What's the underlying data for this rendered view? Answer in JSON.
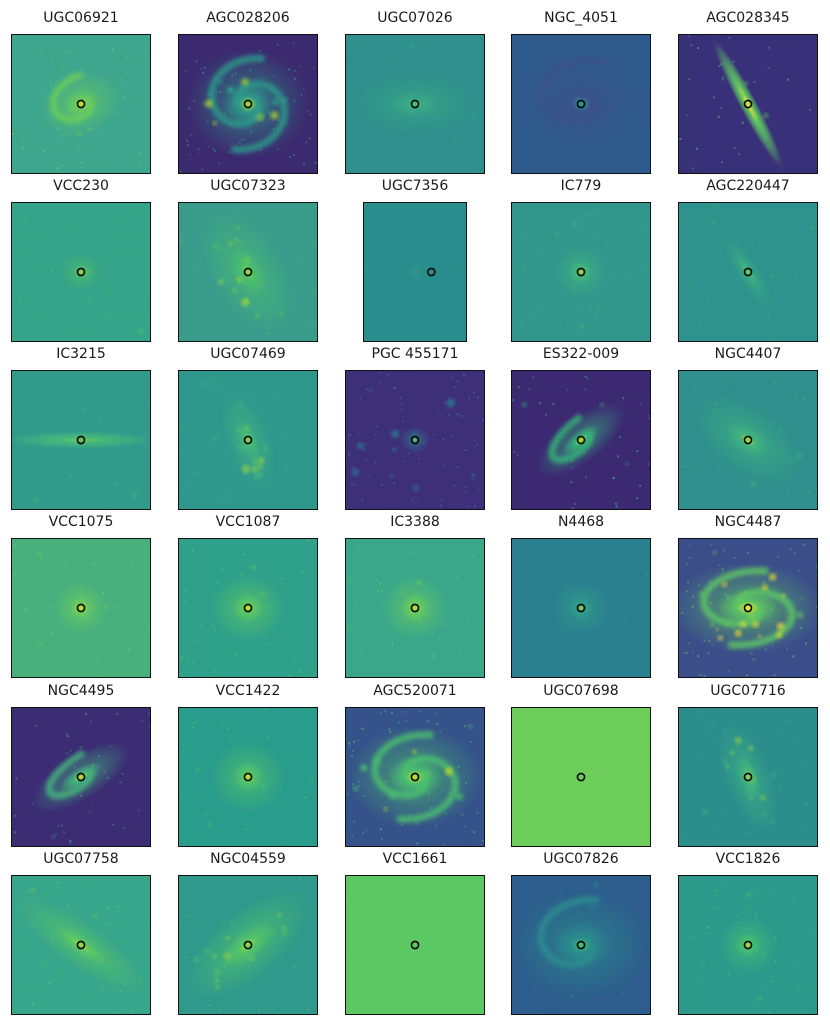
{
  "figure": {
    "colormap": "viridis",
    "marker": {
      "shape": "circle",
      "fill": "none",
      "stroke": "#000000"
    },
    "panels": [
      {
        "title": "UGC06921",
        "morph": "spiral",
        "bg": "#3ea68d",
        "core": "#d2e21b",
        "glow": "#6ccd5a",
        "angle": -20,
        "elong": 0.75,
        "spread": 0.55
      },
      {
        "title": "AGC028206",
        "morph": "grand_spiral",
        "bg": "#3b2a6f",
        "core": "#b5de2b",
        "glow": "#2d9c8a",
        "angle": 0,
        "elong": 0.9,
        "spread": 0.8
      },
      {
        "title": "UGC07026",
        "morph": "disk",
        "bg": "#2f8f8c",
        "core": "#50c46a",
        "glow": "#38aa85",
        "angle": 0,
        "elong": 0.5,
        "spread": 0.8
      },
      {
        "title": "NGC_4051",
        "morph": "spiral_dark",
        "bg": "#2f5b8c",
        "core": "#2aa08a",
        "glow": "#3b528b",
        "angle": 10,
        "elong": 0.8,
        "spread": 0.9
      },
      {
        "title": "AGC028345",
        "morph": "edge_on",
        "bg": "#39307a",
        "core": "#fde725",
        "glow": "#5ec962",
        "angle": 62,
        "elong": 0.12,
        "spread": 1.0
      },
      {
        "title": "VCC230",
        "morph": "smooth",
        "bg": "#35a488",
        "core": "#c8e020",
        "glow": "#4fc26a",
        "angle": 0,
        "elong": 1.0,
        "spread": 0.25
      },
      {
        "title": "UGC07323",
        "morph": "diffuse",
        "bg": "#3a9d8b",
        "core": "#9ad83d",
        "glow": "#4cbf6c",
        "angle": 60,
        "elong": 0.55,
        "spread": 0.85
      },
      {
        "title": "UGC7356",
        "morph": "faint",
        "bg": "#2a8d8d",
        "core": "#6ccd5a",
        "glow": "#2f9a8a",
        "angle": 0,
        "elong": 1.0,
        "spread": 0.1
      },
      {
        "title": "IC779",
        "morph": "smooth",
        "bg": "#31968b",
        "core": "#bfdf25",
        "glow": "#45b97a",
        "angle": 0,
        "elong": 1.0,
        "spread": 0.35
      },
      {
        "title": "AGC220447",
        "morph": "disk",
        "bg": "#2e938c",
        "core": "#8fd744",
        "glow": "#3fb47f",
        "angle": 58,
        "elong": 0.28,
        "spread": 0.55
      },
      {
        "title": "IC3215",
        "morph": "edge_on",
        "bg": "#329a8b",
        "core": "#6ccd5a",
        "glow": "#44b87b",
        "angle": 0,
        "elong": 0.12,
        "spread": 1.0
      },
      {
        "title": "UGC07469",
        "morph": "diffuse",
        "bg": "#2f988c",
        "core": "#9ad83d",
        "glow": "#45b97a",
        "angle": 70,
        "elong": 0.45,
        "spread": 0.65
      },
      {
        "title": "PGC 455171",
        "morph": "field",
        "bg": "#3e2f79",
        "core": "#d2e21b",
        "glow": "#2c838e",
        "angle": 0,
        "elong": 0.9,
        "spread": 0.2
      },
      {
        "title": "ES322-009",
        "morph": "spiral_tilt",
        "bg": "#3b2a72",
        "core": "#dde318",
        "glow": "#35b779",
        "angle": -38,
        "elong": 0.42,
        "spread": 0.7
      },
      {
        "title": "NGC4407",
        "morph": "disk",
        "bg": "#2f8f8c",
        "core": "#b8de29",
        "glow": "#41b57d",
        "angle": 35,
        "elong": 0.55,
        "spread": 0.8
      },
      {
        "title": "VCC1075",
        "morph": "smooth",
        "bg": "#47b07d",
        "core": "#d8e219",
        "glow": "#73d056",
        "angle": 0,
        "elong": 1.0,
        "spread": 0.35
      },
      {
        "title": "VCC1087",
        "morph": "smooth",
        "bg": "#2fa08a",
        "core": "#dde318",
        "glow": "#5ec962",
        "angle": 0,
        "elong": 0.9,
        "spread": 0.5
      },
      {
        "title": "IC3388",
        "morph": "smooth",
        "bg": "#3aa78a",
        "core": "#d8e219",
        "glow": "#6ccd5a",
        "angle": 0,
        "elong": 0.95,
        "spread": 0.45
      },
      {
        "title": "N4468",
        "morph": "smooth",
        "bg": "#2a7f8e",
        "core": "#9fda3a",
        "glow": "#2fa08a",
        "angle": 0,
        "elong": 0.95,
        "spread": 0.4
      },
      {
        "title": "NGC4487",
        "morph": "grand_spiral",
        "bg": "#3b4e8a",
        "core": "#fde725",
        "glow": "#5ec962",
        "angle": 0,
        "elong": 0.6,
        "spread": 1.0
      },
      {
        "title": "NGC4495",
        "morph": "spiral_tilt",
        "bg": "#3b2c74",
        "core": "#e1e41d",
        "glow": "#43b77c",
        "angle": -32,
        "elong": 0.4,
        "spread": 0.75
      },
      {
        "title": "VCC1422",
        "morph": "smooth",
        "bg": "#2a9c8b",
        "core": "#d8e219",
        "glow": "#55c567",
        "angle": 0,
        "elong": 0.95,
        "spread": 0.5
      },
      {
        "title": "AGC520071",
        "morph": "grand_spiral",
        "bg": "#35528a",
        "core": "#d2e21b",
        "glow": "#4ac16d",
        "angle": 0,
        "elong": 0.75,
        "spread": 0.9
      },
      {
        "title": "UGC07698",
        "morph": "noise",
        "bg": "#6ccd5a",
        "core": "#8fd744",
        "glow": "#75d054",
        "angle": 0,
        "elong": 1.0,
        "spread": 0.1
      },
      {
        "title": "UGC07716",
        "morph": "diffuse",
        "bg": "#2c8e8c",
        "core": "#9ad83d",
        "glow": "#41b57d",
        "angle": 70,
        "elong": 0.4,
        "spread": 0.75
      },
      {
        "title": "UGC07758",
        "morph": "disk",
        "bg": "#38a68a",
        "core": "#a8db34",
        "glow": "#5ec962",
        "angle": 35,
        "elong": 0.3,
        "spread": 1.0
      },
      {
        "title": "NGC04559",
        "morph": "diffuse",
        "bg": "#2f998b",
        "core": "#95d840",
        "glow": "#55c567",
        "angle": -40,
        "elong": 0.45,
        "spread": 1.0
      },
      {
        "title": "VCC1661",
        "morph": "noise",
        "bg": "#5cc863",
        "core": "#7ad151",
        "glow": "#66cb5d",
        "angle": 0,
        "elong": 1.0,
        "spread": 0.1
      },
      {
        "title": "UGC07826",
        "morph": "spiral_dark",
        "bg": "#2c5d8c",
        "core": "#48c16e",
        "glow": "#2a8f8d",
        "angle": 0,
        "elong": 0.8,
        "spread": 0.9
      },
      {
        "title": "VCC1826",
        "morph": "smooth",
        "bg": "#2b9a8b",
        "core": "#c0df25",
        "glow": "#48c16e",
        "angle": 0,
        "elong": 0.95,
        "spread": 0.4
      }
    ]
  }
}
